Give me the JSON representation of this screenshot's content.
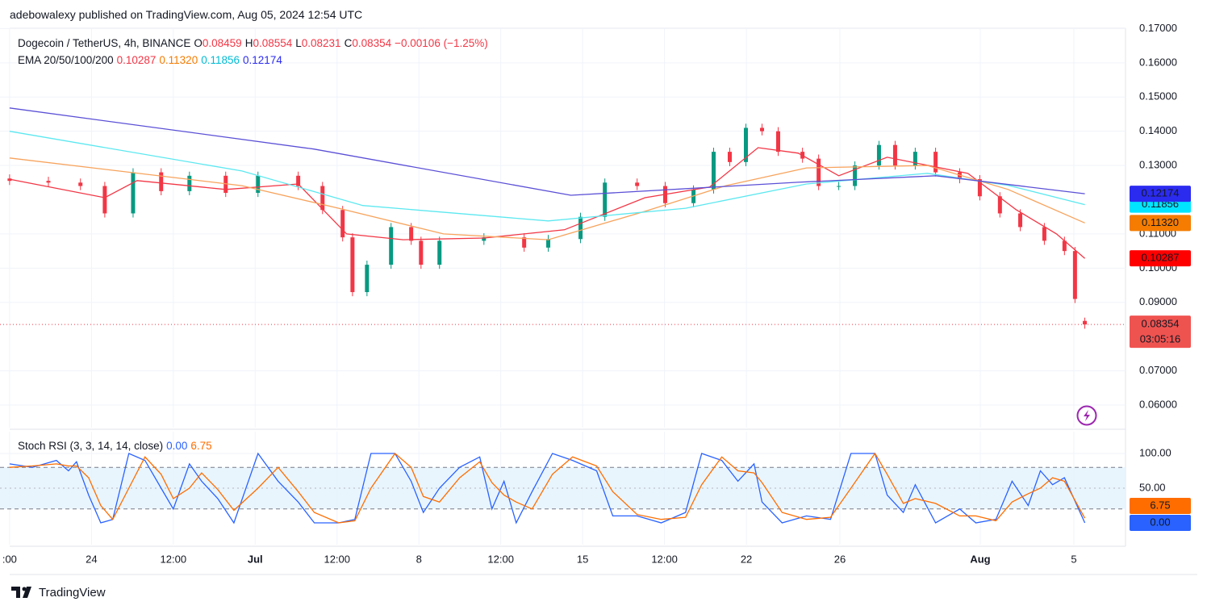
{
  "header": {
    "text": "adebowalexy published on TradingView.com, Aug 05, 2024 12:54 UTC"
  },
  "footer": {
    "brand": "TradingView"
  },
  "chart_data": [
    {
      "type": "candlestick",
      "title": "Dogecoin / TetherUS, 4h, BINANCE",
      "quote": [
        {
          "label": "O",
          "value": 0.08459
        },
        {
          "label": "H",
          "value": 0.08554
        },
        {
          "label": "L",
          "value": 0.08231
        },
        {
          "label": "C",
          "value": 0.08354
        }
      ],
      "change_label": "−0.00106 (−1.25%)",
      "overlay_title": "EMA 20/50/100/200",
      "countdown": "03:05:16",
      "up_color": "#089981",
      "down_color": "#f23645",
      "x": [
        -3.5,
        -1.84,
        -0.47,
        0.57,
        1.78,
        2.98,
        4.19,
        5.74,
        7.12,
        8.84,
        9.88,
        10.74,
        11.16,
        11.78,
        12.81,
        13.67,
        14.09,
        14.88,
        16.78,
        18.5,
        19.53,
        20.91,
        21.95,
        23.33,
        24.53,
        25.74,
        26.6,
        27.29,
        27.98,
        28.67,
        29.36,
        30.4,
        31.09,
        31.95,
        32.64,
        33.67,
        34.36,
        35.22,
        36.09,
        37.12,
        37.98,
        38.84,
        39.71,
        40.74,
        41.6,
        42.05,
        42.47
      ],
      "open": [
        0.1262,
        0.1255,
        0.125,
        0.124,
        0.116,
        0.128,
        0.1225,
        0.127,
        0.122,
        0.127,
        0.124,
        0.117,
        0.109,
        0.093,
        0.101,
        0.112,
        0.108,
        0.101,
        0.108,
        0.109,
        0.106,
        0.1085,
        0.115,
        0.125,
        0.124,
        0.119,
        0.123,
        0.134,
        0.131,
        0.141,
        0.14,
        0.134,
        0.132,
        0.124,
        0.124,
        0.13,
        0.136,
        0.13,
        0.134,
        0.128,
        0.126,
        0.121,
        0.116,
        0.112,
        0.108,
        0.105,
        0.08459
      ],
      "high": [
        0.1274,
        0.1267,
        0.1262,
        0.1252,
        0.1292,
        0.1292,
        0.1282,
        0.1282,
        0.1282,
        0.1282,
        0.1252,
        0.1182,
        0.1102,
        0.1022,
        0.1132,
        0.1132,
        0.1092,
        0.1092,
        0.1102,
        0.1102,
        0.1097,
        0.1162,
        0.1262,
        0.1262,
        0.1252,
        0.1242,
        0.1352,
        0.1352,
        0.1422,
        0.1422,
        0.1412,
        0.1352,
        0.1332,
        0.1252,
        0.1312,
        0.1372,
        0.1372,
        0.1352,
        0.1352,
        0.1292,
        0.1272,
        0.1222,
        0.1172,
        0.1132,
        0.1092,
        0.1062,
        0.08554
      ],
      "low": [
        0.1243,
        0.1238,
        0.1228,
        0.1148,
        0.1148,
        0.1213,
        0.1213,
        0.1208,
        0.1208,
        0.1228,
        0.1158,
        0.1078,
        0.0918,
        0.0918,
        0.0998,
        0.1068,
        0.0998,
        0.0998,
        0.1068,
        0.1048,
        0.1048,
        0.1073,
        0.1138,
        0.1228,
        0.1178,
        0.1178,
        0.1218,
        0.1298,
        0.1298,
        0.1388,
        0.1328,
        0.1308,
        0.1228,
        0.1228,
        0.1228,
        0.1288,
        0.1288,
        0.1288,
        0.1268,
        0.1248,
        0.1198,
        0.1148,
        0.1108,
        0.1068,
        0.1038,
        0.0898,
        0.08231
      ],
      "close": [
        0.1255,
        0.125,
        0.124,
        0.116,
        0.128,
        0.1225,
        0.127,
        0.122,
        0.127,
        0.124,
        0.117,
        0.109,
        0.093,
        0.101,
        0.112,
        0.108,
        0.101,
        0.108,
        0.109,
        0.106,
        0.1085,
        0.115,
        0.125,
        0.124,
        0.119,
        0.123,
        0.134,
        0.131,
        0.141,
        0.14,
        0.134,
        0.132,
        0.124,
        0.124,
        0.13,
        0.136,
        0.13,
        0.134,
        0.128,
        0.126,
        0.121,
        0.116,
        0.112,
        0.108,
        0.105,
        0.091,
        0.08354
      ],
      "series": [
        {
          "color": "#f23645",
          "badge_color": "#ff0000",
          "last_label": "0.10287",
          "x": [
            -3.5,
            0.57,
            1.95,
            5.74,
            8.84,
            10.91,
            13.33,
            16.78,
            20.22,
            23.67,
            26.43,
            28.5,
            30.22,
            31.95,
            34.02,
            37.47,
            39.53,
            41.26,
            42.47
          ],
          "values": [
            0.126,
            0.1206,
            0.1256,
            0.123,
            0.1246,
            0.11,
            0.1083,
            0.1088,
            0.1112,
            0.1206,
            0.1237,
            0.1352,
            0.1336,
            0.127,
            0.1324,
            0.1277,
            0.1171,
            0.11,
            0.10287
          ]
        },
        {
          "color": "#f7a35c",
          "badge_color": "#f57c00",
          "last_label": "0.11320",
          "x": [
            -3.5,
            6.43,
            10.57,
            15.05,
            19.53,
            23.67,
            27.12,
            30.57,
            35.74,
            39.19,
            42.47
          ],
          "values": [
            0.1322,
            0.1241,
            0.1175,
            0.11,
            0.1083,
            0.1166,
            0.1241,
            0.1293,
            0.13,
            0.123,
            0.1132
          ]
        },
        {
          "color": "#5ce8f0",
          "badge_color": "#00e5ff",
          "last_label": "0.11856",
          "x": [
            -3.5,
            6.43,
            11.6,
            19.53,
            25.4,
            30.57,
            35.74,
            39.19,
            42.47
          ],
          "values": [
            0.14,
            0.1284,
            0.1183,
            0.1138,
            0.1175,
            0.1246,
            0.1277,
            0.1242,
            0.11856
          ]
        },
        {
          "color": "#5b50d6",
          "badge_color": "#2b2bf0",
          "last_label": "0.12174",
          "x": [
            -3.5,
            9.5,
            20.5,
            30.2,
            36.1,
            42.47
          ],
          "values": [
            0.1468,
            0.1348,
            0.1213,
            0.1251,
            0.127,
            0.12174
          ]
        }
      ],
      "xlim": [
        -3.91,
        44.21
      ],
      "xticks": [
        {
          "value": -3.5,
          "label": ":00"
        },
        {
          "value": 0,
          "label": "24"
        },
        {
          "value": 3.5,
          "label": "12:00"
        },
        {
          "value": 7,
          "label": "Jul"
        },
        {
          "value": 10.5,
          "label": "12:00"
        },
        {
          "value": 14,
          "label": "8"
        },
        {
          "value": 17.5,
          "label": "12:00"
        },
        {
          "value": 21,
          "label": "15"
        },
        {
          "value": 24.5,
          "label": "12:00"
        },
        {
          "value": 28,
          "label": "22"
        },
        {
          "value": 32,
          "label": "26"
        },
        {
          "value": 38,
          "label": "Aug"
        },
        {
          "value": 42,
          "label": "5"
        }
      ],
      "ylim": [
        0.0534,
        0.1701
      ],
      "yticks": [
        {
          "value": 0.06,
          "label": "0.06000"
        },
        {
          "value": 0.07,
          "label": "0.07000"
        },
        {
          "value": 0.09,
          "label": "0.09000"
        },
        {
          "value": 0.1,
          "label": "0.10000"
        },
        {
          "value": 0.11,
          "label": "0.11000"
        },
        {
          "value": 0.13,
          "label": "0.13000"
        },
        {
          "value": 0.14,
          "label": "0.14000"
        },
        {
          "value": 0.15,
          "label": "0.15000"
        },
        {
          "value": 0.16,
          "label": "0.16000"
        },
        {
          "value": 0.17,
          "label": "0.17000"
        }
      ],
      "grid": true
    },
    {
      "type": "line",
      "title": "Stoch RSI (3, 3, 14, 14, close)",
      "x": [
        -3.5,
        -2.53,
        -1.5,
        -0.98,
        -0.64,
        -0.12,
        0.4,
        0.91,
        1.6,
        2.29,
        2.98,
        3.5,
        4.19,
        4.71,
        5.4,
        6.09,
        7.12,
        7.98,
        8.84,
        9.53,
        10.57,
        11.26,
        11.95,
        12.98,
        13.67,
        14.19,
        14.88,
        15.74,
        16.6,
        17.12,
        17.64,
        18.16,
        18.84,
        19.71,
        20.57,
        21.6,
        22.29,
        23.33,
        24.36,
        25.4,
        26.09,
        26.95,
        27.64,
        28.33,
        28.67,
        29.53,
        30.57,
        31.6,
        32.47,
        33.5,
        34.02,
        34.71,
        35.22,
        36.09,
        37.12,
        37.81,
        38.67,
        39.36,
        40.05,
        40.57,
        41.09,
        41.6,
        42.47
      ],
      "series": [
        {
          "color": "#2962ff",
          "last_label": "0.00",
          "values": [
            85,
            80,
            90,
            75,
            88,
            40,
            0,
            5,
            100,
            90,
            50,
            20,
            85,
            60,
            35,
            0,
            100,
            60,
            30,
            0,
            0,
            5,
            100,
            100,
            60,
            15,
            50,
            80,
            95,
            20,
            60,
            0,
            45,
            100,
            90,
            75,
            10,
            10,
            0,
            15,
            100,
            90,
            60,
            85,
            30,
            0,
            10,
            5,
            100,
            100,
            40,
            15,
            55,
            0,
            20,
            0,
            5,
            60,
            25,
            75,
            55,
            65,
            0
          ]
        },
        {
          "color": "#ff6d00",
          "last_label": "6.75",
          "values": [
            80,
            82,
            85,
            82,
            82,
            65,
            25,
            5,
            50,
            95,
            70,
            35,
            50,
            72,
            48,
            18,
            50,
            80,
            45,
            15,
            0,
            3,
            50,
            100,
            80,
            38,
            30,
            65,
            88,
            58,
            40,
            30,
            20,
            70,
            95,
            82,
            45,
            12,
            5,
            8,
            55,
            95,
            75,
            72,
            58,
            15,
            5,
            8,
            50,
            100,
            70,
            28,
            35,
            28,
            10,
            10,
            3,
            30,
            42,
            50,
            65,
            60,
            6.75
          ]
        }
      ],
      "bands": [
        80,
        20
      ],
      "band_color": "#e3f2fd",
      "xlim": [
        -3.91,
        44.21
      ],
      "ylim": [
        -31.4,
        131.4
      ],
      "yticks": [
        {
          "value": 50,
          "label": "50.00"
        },
        {
          "value": 100,
          "label": "100.00"
        }
      ],
      "grid": true
    }
  ]
}
